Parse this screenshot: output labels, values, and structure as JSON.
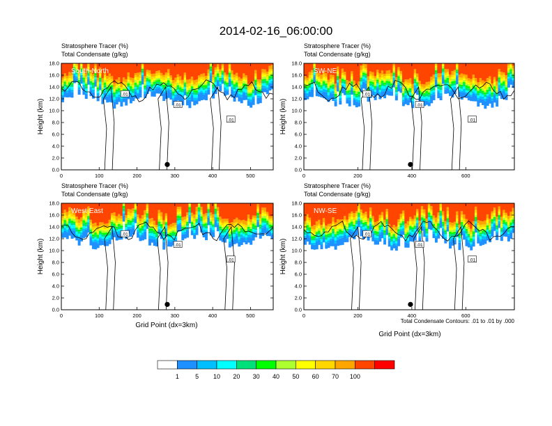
{
  "title": "2014-02-16_06:00:00",
  "panel_header_line1": "Stratosphere Tracer   (%)",
  "panel_header_line2": "Total Condensate   (g/kg)",
  "xlabel": "Grid Point (dx=3km)",
  "ylabel": "Height (km)",
  "contour_note": "Total Condensate Contours: .01 to .01 by .000",
  "contour_label": ".01",
  "colorbar": {
    "levels": [
      "1",
      "5",
      "10",
      "20",
      "30",
      "40",
      "50",
      "60",
      "70",
      "100"
    ],
    "colors": [
      "#ffffff",
      "#1e90ff",
      "#00bfff",
      "#00ffff",
      "#00e07a",
      "#00ff00",
      "#adff2f",
      "#ffff00",
      "#ffd700",
      "#ffa500",
      "#ff4500",
      "#ff0000"
    ]
  },
  "chart_data": [
    {
      "type": "heatmap",
      "label": "South-North",
      "xlim": [
        0,
        560
      ],
      "ylim": [
        0,
        18
      ],
      "xticks": [
        0,
        100,
        200,
        300,
        400,
        500
      ],
      "yticks": [
        0.0,
        2.0,
        4.0,
        6.0,
        8.0,
        10.0,
        12.0,
        14.0,
        16.0,
        18.0
      ],
      "marker": {
        "x": 280,
        "y": 0.9
      },
      "base_km": 11.8
    },
    {
      "type": "heatmap",
      "label": "SW-NE",
      "xlim": [
        0,
        780
      ],
      "ylim": [
        0,
        18
      ],
      "xticks": [
        0,
        200,
        400,
        600
      ],
      "yticks": [
        0.0,
        2.0,
        4.0,
        6.0,
        8.0,
        10.0,
        12.0,
        14.0,
        16.0,
        18.0
      ],
      "marker": {
        "x": 395,
        "y": 0.9
      },
      "base_km": 11.6
    },
    {
      "type": "heatmap",
      "label": "West-East",
      "xlim": [
        0,
        560
      ],
      "ylim": [
        0,
        18
      ],
      "xticks": [
        0,
        100,
        200,
        300,
        400,
        500
      ],
      "yticks": [
        0.0,
        2.0,
        4.0,
        6.0,
        8.0,
        10.0,
        12.0,
        14.0,
        16.0,
        18.0
      ],
      "marker": {
        "x": 280,
        "y": 0.9
      },
      "base_km": 11.6
    },
    {
      "type": "heatmap",
      "label": "NW-SE",
      "xlim": [
        0,
        780
      ],
      "ylim": [
        0,
        18
      ],
      "xticks": [
        0,
        200,
        400,
        600
      ],
      "yticks": [
        0.0,
        2.0,
        4.0,
        6.0,
        8.0,
        10.0,
        12.0,
        14.0,
        16.0,
        18.0
      ],
      "marker": {
        "x": 395,
        "y": 0.9
      },
      "base_km": 11.2
    }
  ]
}
